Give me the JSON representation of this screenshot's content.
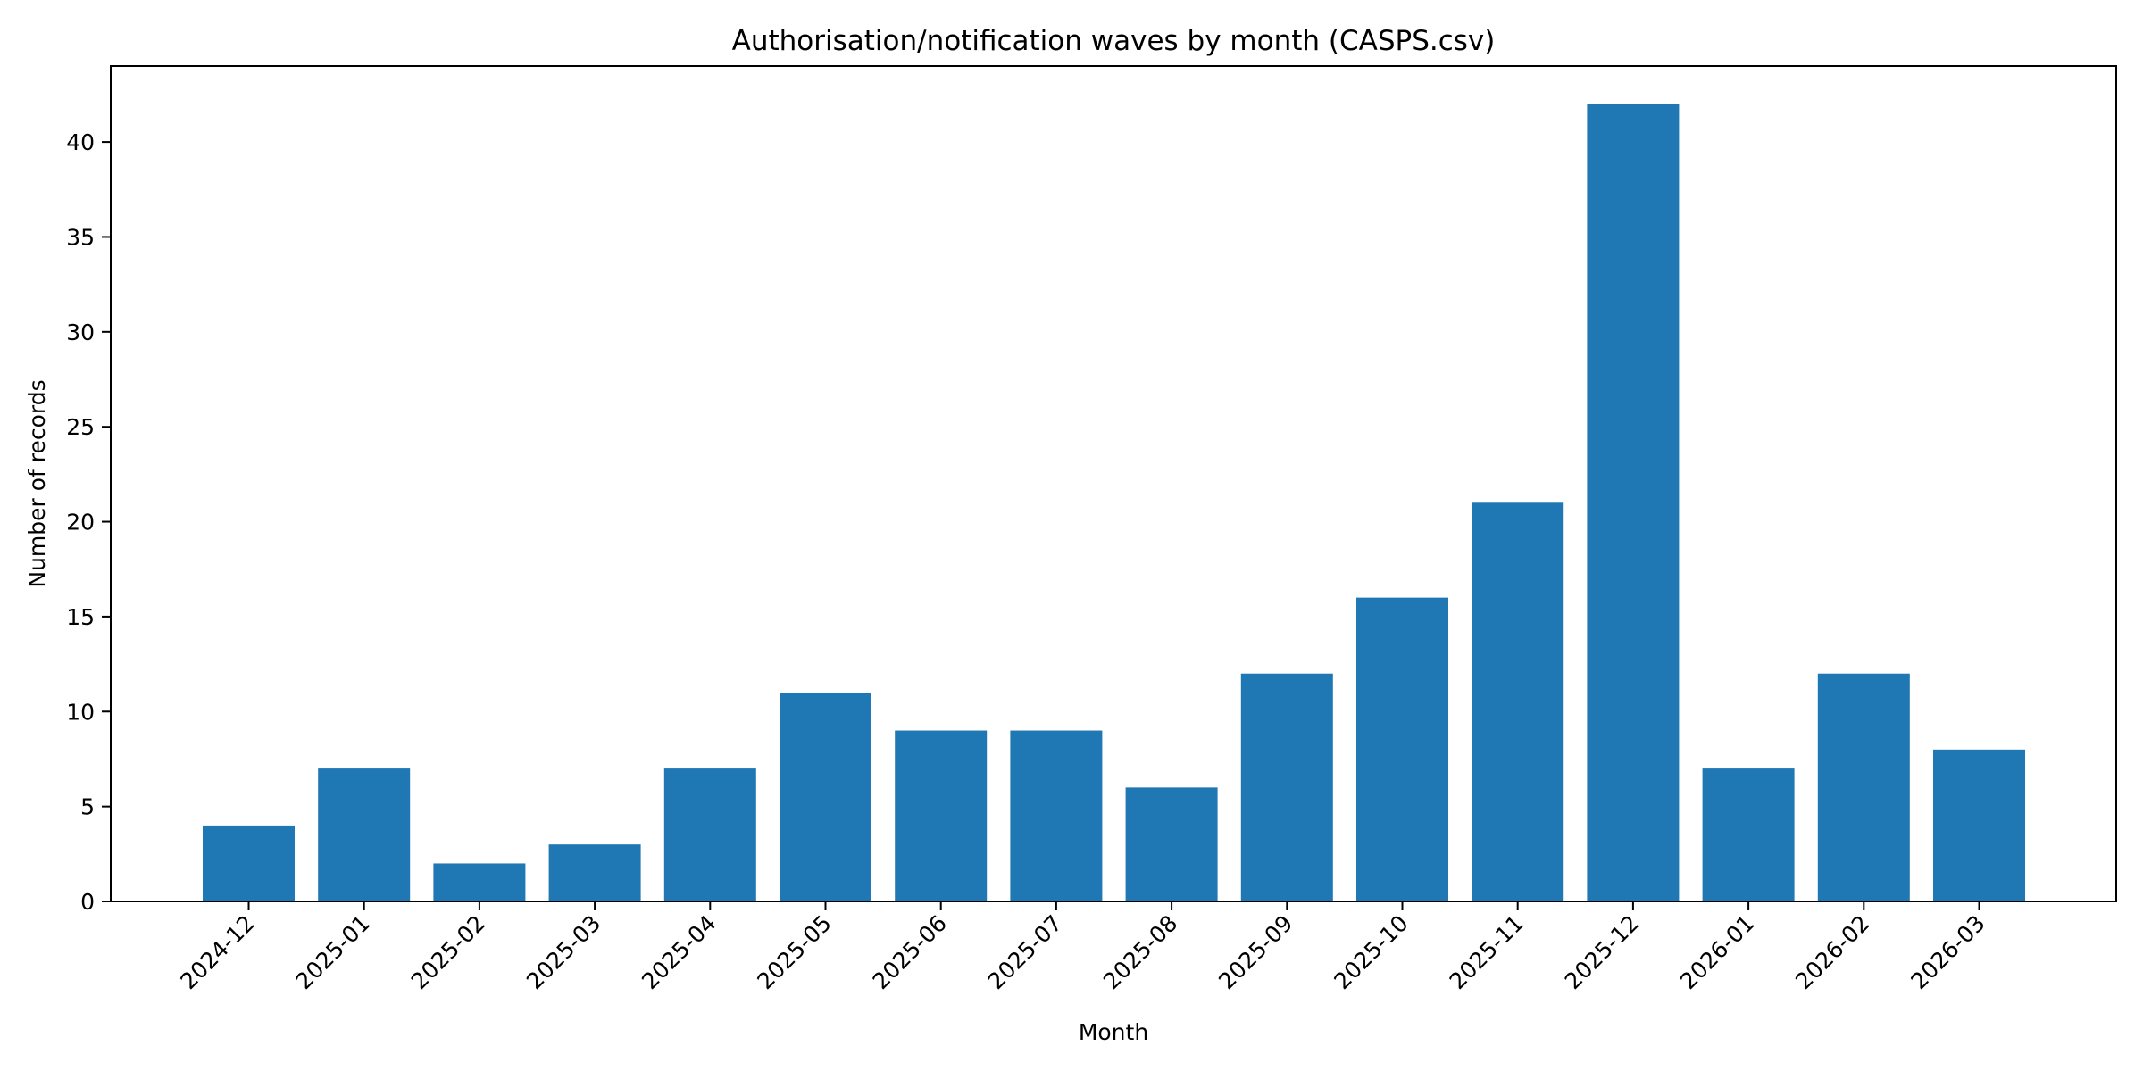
{
  "chart_data": {
    "type": "bar",
    "title": "Authorisation/notification waves by month (CASPS.csv)",
    "xlabel": "Month",
    "ylabel": "Number of records",
    "categories": [
      "2024-12",
      "2025-01",
      "2025-02",
      "2025-03",
      "2025-04",
      "2025-05",
      "2025-06",
      "2025-07",
      "2025-08",
      "2025-09",
      "2025-10",
      "2025-11",
      "2025-12",
      "2026-01",
      "2026-02",
      "2026-03"
    ],
    "values": [
      4,
      7,
      2,
      3,
      7,
      11,
      9,
      9,
      6,
      12,
      16,
      21,
      42,
      7,
      12,
      8
    ],
    "ylim": [
      0,
      44
    ],
    "yticks": [
      0,
      5,
      10,
      15,
      20,
      25,
      30,
      35,
      40
    ],
    "grid": false,
    "bar_color": "#1f77b4"
  }
}
